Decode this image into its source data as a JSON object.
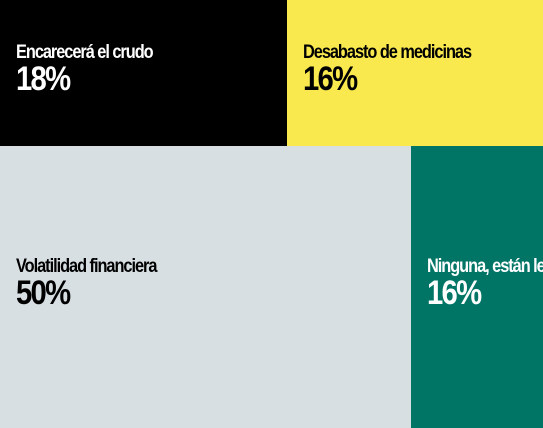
{
  "chart_data": {
    "type": "treemap",
    "title": "",
    "series": [
      {
        "label": "Encarecerá el crudo",
        "value": 18,
        "display": "18%",
        "color": "#000000",
        "text_color": "#ffffff"
      },
      {
        "label": "Desabasto de medicinas",
        "value": 16,
        "display": "16%",
        "color": "#f9e84e",
        "text_color": "#000000"
      },
      {
        "label": "Volatilidad financiera",
        "value": 50,
        "display": "50%",
        "color": "#d8dfe3",
        "text_color": "#000000"
      },
      {
        "label": "Ninguna, están lejos",
        "value": 16,
        "display": "16%",
        "color": "#007566",
        "text_color": "#ffffff"
      }
    ]
  }
}
